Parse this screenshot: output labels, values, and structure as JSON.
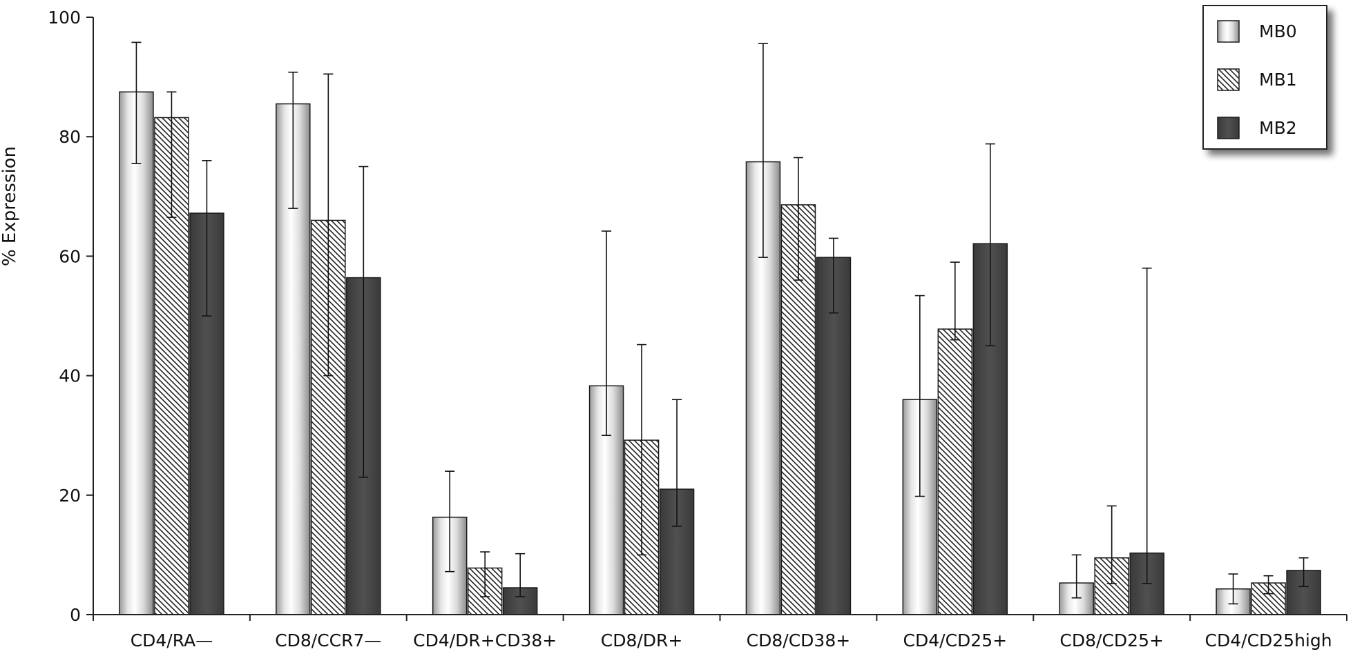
{
  "chart_data": {
    "type": "bar",
    "title": "",
    "xlabel": "",
    "ylabel": "% Expression",
    "ylim": [
      0,
      100
    ],
    "yticks": [
      "0",
      "20",
      "40",
      "60",
      "80",
      "100"
    ],
    "grid": false,
    "legend_position": "top-right",
    "categories": [
      "CD4/RA—",
      "CD8/CCR7—",
      "CD4/DR+CD38+",
      "CD8/DR+",
      "CD8/CD38+",
      "CD4/CD25+",
      "CD8/CD25+",
      "CD4/CD25high"
    ],
    "series": [
      {
        "name": "MB0",
        "style": "gradient",
        "values": [
          87.5,
          85.5,
          16.3,
          38.3,
          75.8,
          36.0,
          5.3,
          4.3
        ],
        "error_low": [
          75.5,
          68.0,
          7.2,
          30.0,
          59.8,
          19.8,
          2.8,
          1.8
        ],
        "error_high": [
          95.8,
          90.8,
          24.0,
          64.2,
          95.6,
          53.4,
          10.0,
          6.8
        ]
      },
      {
        "name": "MB1",
        "style": "hatched",
        "values": [
          83.2,
          66.0,
          7.8,
          29.2,
          68.6,
          47.8,
          9.5,
          5.3
        ],
        "error_low": [
          66.5,
          40.0,
          3.0,
          10.0,
          56.0,
          46.0,
          5.2,
          3.5
        ],
        "error_high": [
          87.5,
          90.5,
          10.5,
          45.2,
          76.5,
          59.0,
          18.2,
          6.5
        ]
      },
      {
        "name": "MB2",
        "style": "dark",
        "values": [
          67.2,
          56.4,
          4.5,
          21.0,
          59.8,
          62.1,
          10.3,
          7.4
        ],
        "error_low": [
          50.0,
          23.0,
          3.0,
          14.8,
          50.5,
          45.0,
          5.2,
          4.7
        ],
        "error_high": [
          76.0,
          75.0,
          10.2,
          36.0,
          63.0,
          78.8,
          58.0,
          9.5
        ]
      }
    ]
  },
  "colors": {
    "axis": "#222222",
    "dark_bar": "#4a4a4a",
    "outline": "#1a1a1a",
    "background": "#ffffff"
  }
}
